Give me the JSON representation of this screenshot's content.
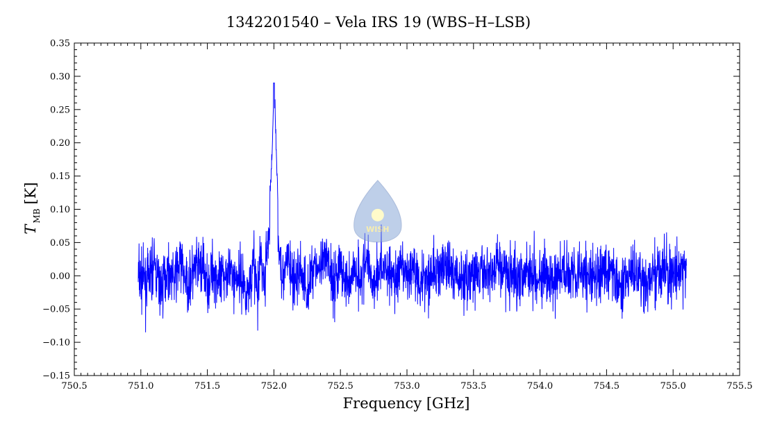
{
  "chart_data": {
    "type": "line",
    "title": "1342201540 – Vela IRS 19 (WBS–H–LSB)",
    "xlabel": "Frequency [GHz]",
    "ylabel": {
      "symbol": "T",
      "subscript": "MB",
      "unit": "[K]"
    },
    "xlim": [
      750.5,
      755.5
    ],
    "ylim": [
      -0.15,
      0.35
    ],
    "x_ticks": [
      750.5,
      751.0,
      751.5,
      752.0,
      752.5,
      753.0,
      753.5,
      754.0,
      754.5,
      755.0,
      755.5
    ],
    "x_tick_labels": [
      "750.5",
      "751.0",
      "751.5",
      "752.0",
      "752.5",
      "753.0",
      "753.5",
      "754.0",
      "754.5",
      "755.0",
      "755.5"
    ],
    "y_ticks": [
      -0.15,
      -0.1,
      -0.05,
      0.0,
      0.05,
      0.1,
      0.15,
      0.2,
      0.25,
      0.3,
      0.35
    ],
    "y_tick_labels": [
      "−0.15",
      "−0.10",
      "−0.05",
      "0.00",
      "0.05",
      "0.10",
      "0.15",
      "0.20",
      "0.25",
      "0.30",
      "0.35"
    ],
    "grid": false,
    "line_color": "#0000ff",
    "series": [
      {
        "x": [
          750.98,
          751.05,
          751.1,
          751.15,
          751.2,
          751.25,
          751.3,
          751.35,
          751.4,
          751.45,
          751.5,
          751.55,
          751.6,
          751.65,
          751.7,
          751.75,
          751.8,
          751.85,
          751.88,
          751.9,
          751.93,
          751.95,
          751.97,
          751.99,
          752.0,
          752.01,
          752.02,
          752.03,
          752.05,
          752.08,
          752.1,
          752.15,
          752.2,
          752.25,
          752.3,
          752.35,
          752.4,
          752.45,
          752.5,
          752.55,
          752.6,
          752.65,
          752.7,
          752.75,
          752.8,
          752.85,
          752.9,
          752.95,
          753.0,
          753.05,
          753.1,
          753.2,
          753.3,
          753.4,
          753.5,
          753.6,
          753.7,
          753.8,
          753.9,
          754.0,
          754.1,
          754.2,
          754.3,
          754.4,
          754.5,
          754.6,
          754.7,
          754.8,
          754.9,
          755.0,
          755.1
        ],
        "y": [
          0.0,
          -0.02,
          0.03,
          -0.04,
          0.02,
          -0.01,
          0.04,
          -0.03,
          0.01,
          0.03,
          -0.02,
          0.02,
          -0.03,
          0.03,
          -0.01,
          0.0,
          -0.05,
          0.04,
          -0.07,
          0.06,
          -0.03,
          0.09,
          0.12,
          0.2,
          0.29,
          0.24,
          0.17,
          0.1,
          0.05,
          -0.02,
          0.06,
          -0.03,
          0.02,
          -0.05,
          0.04,
          0.01,
          0.05,
          -0.02,
          0.03,
          -0.03,
          0.02,
          0.0,
          0.04,
          -0.02,
          0.03,
          0.02,
          -0.01,
          0.01,
          0.0,
          0.02,
          -0.01,
          0.01,
          0.02,
          -0.01,
          0.0,
          0.01,
          0.03,
          -0.01,
          0.02,
          0.0,
          -0.02,
          0.02,
          0.01,
          -0.01,
          0.02,
          -0.02,
          0.01,
          -0.03,
          0.02,
          0.0,
          0.01
        ],
        "noise_rms": 0.03,
        "peak": {
          "x": 752.0,
          "y": 0.29
        }
      }
    ]
  },
  "watermark": {
    "text": "WISH"
  }
}
